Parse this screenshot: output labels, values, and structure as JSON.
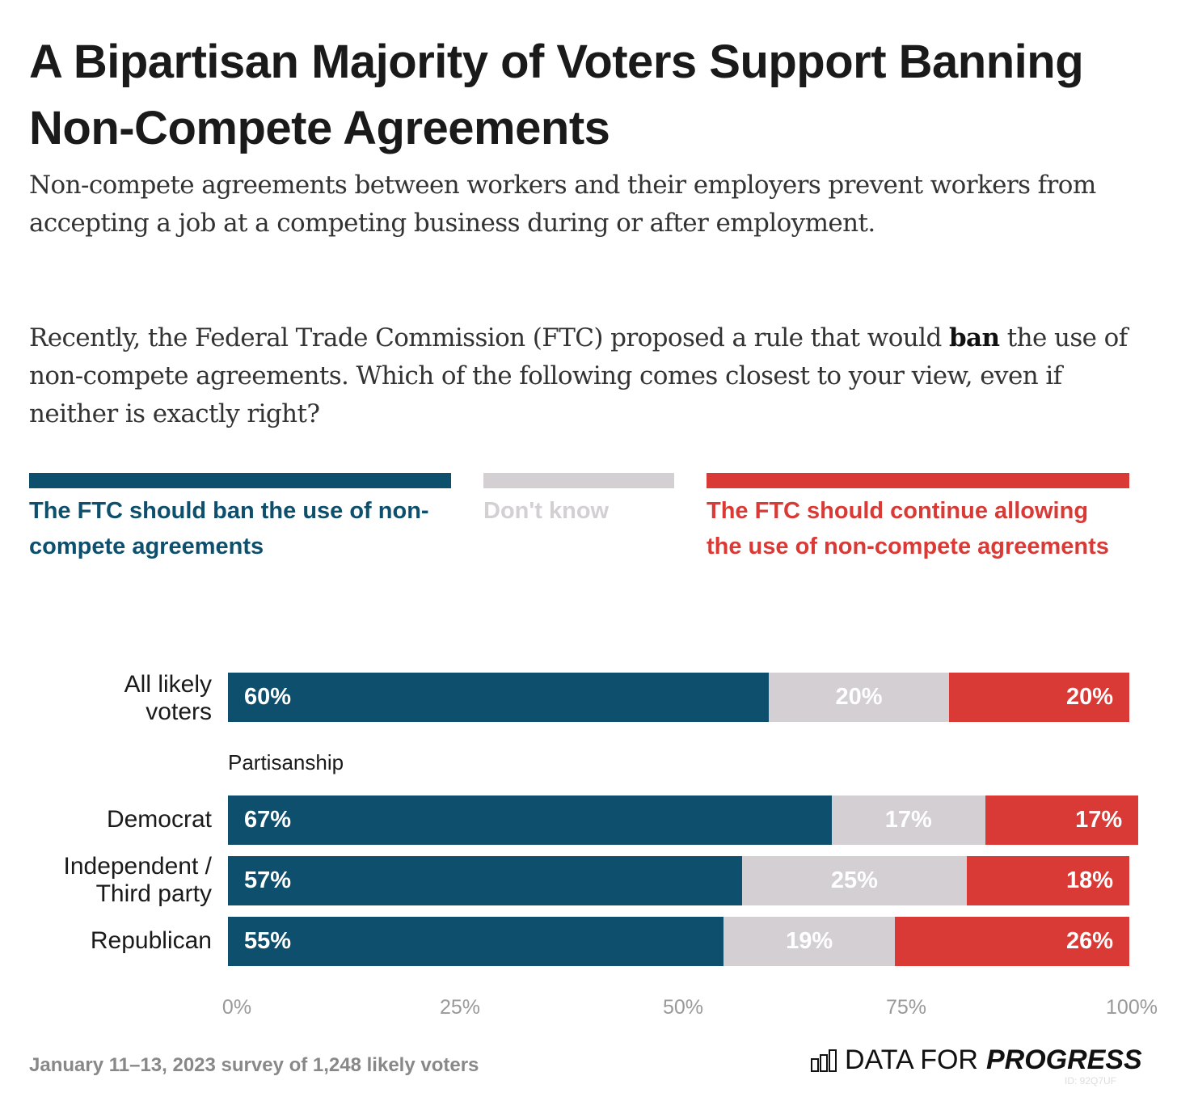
{
  "title": "A Bipartisan Majority of Voters Support Banning Non-Compete Agreements",
  "subtitle_1": "Non-compete agreements between workers and their employers prevent workers from accepting a job at a competing business during or after employment.",
  "subtitle_2_pre": "Recently, the Federal Trade Commission (FTC) proposed a rule that would ",
  "subtitle_2_bold": "ban",
  "subtitle_2_post": " the use of non-compete agreements. Which of the following comes closest to your view, even if neither is exactly right?",
  "footer": "January 11–13, 2023 survey of 1,248 likely voters",
  "logo_text_light": "DATA FOR",
  "logo_text_bold": "PROGRESS",
  "image_id": "ID: 92Q7UF",
  "colors": {
    "ban": "#0d4f6c",
    "dont_know": "#d3cfd2",
    "continue": "#d93a35"
  },
  "chart_data": {
    "type": "bar",
    "stacked": true,
    "orientation": "horizontal",
    "legend": [
      "The FTC should ban the use of non-compete agreements",
      "Don't know",
      "The FTC should continue allowing the use of non-compete agreements"
    ],
    "group_label": "Partisanship",
    "categories": [
      "All likely voters",
      "Democrat",
      "Independent / Third party",
      "Republican"
    ],
    "series": [
      {
        "name": "The FTC should ban the use of non-compete agreements",
        "values": [
          60,
          67,
          57,
          55
        ]
      },
      {
        "name": "Don't know",
        "values": [
          20,
          17,
          25,
          19
        ]
      },
      {
        "name": "The FTC should continue allowing the use of non-compete agreements",
        "values": [
          20,
          17,
          18,
          26
        ]
      }
    ],
    "xticks": [
      "0%",
      "25%",
      "50%",
      "75%",
      "100%"
    ],
    "xlim": [
      0,
      100
    ]
  }
}
